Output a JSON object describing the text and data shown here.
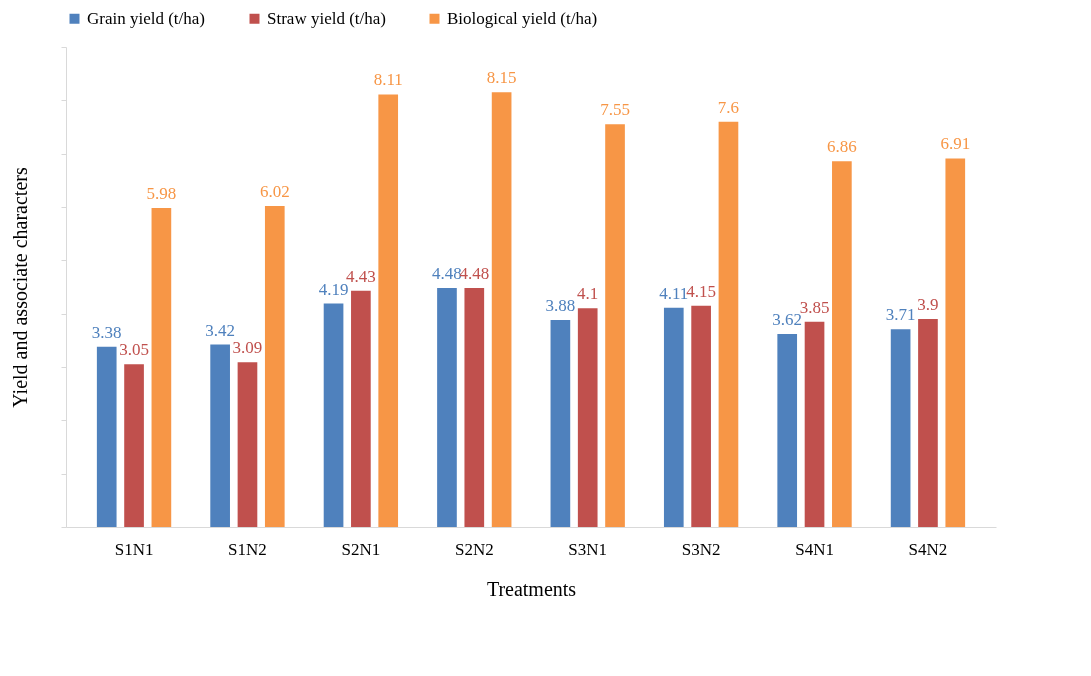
{
  "chart_data": {
    "type": "bar",
    "xlabel": "Treatments",
    "ylabel": "Yield and associate characters",
    "categories": [
      "S1N1",
      "S1N2",
      "S2N1",
      "S2N2",
      "S3N1",
      "S3N2",
      "S4N1",
      "S4N2"
    ],
    "series": [
      {
        "name": "Grain yield (t/ha)",
        "color": "#4f81bd",
        "values": [
          3.38,
          3.42,
          4.19,
          4.48,
          3.88,
          4.11,
          3.62,
          3.71
        ]
      },
      {
        "name": "Straw yield (t/ha)",
        "color": "#c0504d",
        "values": [
          3.05,
          3.09,
          4.43,
          4.48,
          4.1,
          4.15,
          3.85,
          3.9
        ]
      },
      {
        "name": "Biological yield (t/ha)",
        "color": "#f79646",
        "values": [
          5.98,
          6.02,
          8.11,
          8.15,
          7.55,
          7.6,
          6.86,
          6.91
        ]
      }
    ],
    "ylim": [
      0,
      9
    ],
    "tick_labels": "x",
    "data_labels": true,
    "legend": "top",
    "grid": false
  }
}
